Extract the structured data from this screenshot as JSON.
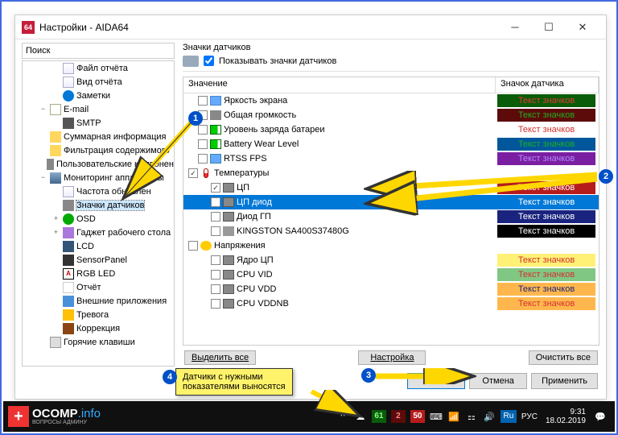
{
  "window": {
    "title": "Настройки - AIDA64",
    "app_badge": "64"
  },
  "search": {
    "label": "Поиск"
  },
  "tree": {
    "items": [
      {
        "label": "Файл отчёта",
        "icon": "ti-page",
        "lvl": "l2"
      },
      {
        "label": "Вид отчёта",
        "icon": "ti-page",
        "lvl": "l2"
      },
      {
        "label": "Заметки",
        "icon": "ti-info",
        "lvl": "l2"
      },
      {
        "label": "E-mail",
        "icon": "ti-mail",
        "lvl": "l1",
        "exp": "−"
      },
      {
        "label": "SMTP",
        "icon": "ti-server",
        "lvl": "l2"
      },
      {
        "label": "Суммарная информация",
        "icon": "ti-folder",
        "lvl": "l1"
      },
      {
        "label": "Фильтрация содержимого",
        "icon": "ti-folder",
        "lvl": "l1"
      },
      {
        "label": "Пользовательские компонен",
        "icon": "ti-sensor",
        "lvl": "l1"
      },
      {
        "label": "Мониторинг аппаратуры",
        "icon": "ti-monitor",
        "lvl": "l1",
        "exp": "−"
      },
      {
        "label": "Частота обновлен",
        "icon": "ti-page",
        "lvl": "l2"
      },
      {
        "label": "Значки датчиков",
        "icon": "ti-sensor",
        "lvl": "l2",
        "sel": true
      },
      {
        "label": "OSD",
        "icon": "ti-osd",
        "lvl": "l2",
        "exp": "+"
      },
      {
        "label": "Гаджет рабочего стола",
        "icon": "ti-gadget",
        "lvl": "l2",
        "exp": "+"
      },
      {
        "label": "LCD",
        "icon": "ti-lcd",
        "lvl": "l2"
      },
      {
        "label": "SensorPanel",
        "icon": "ti-panel",
        "lvl": "l2"
      },
      {
        "label": "RGB LED",
        "icon": "ti-rgb",
        "lvl": "l2",
        "txt": "A"
      },
      {
        "label": "Отчёт",
        "icon": "ti-report",
        "lvl": "l2"
      },
      {
        "label": "Внешние приложения",
        "icon": "ti-apps",
        "lvl": "l2"
      },
      {
        "label": "Тревога",
        "icon": "ti-warn",
        "lvl": "l2"
      },
      {
        "label": "Коррекция",
        "icon": "ti-corr",
        "lvl": "l2"
      },
      {
        "label": "Горячие клавиши",
        "icon": "ti-hotkey",
        "lvl": "l1"
      }
    ]
  },
  "section": {
    "title": "Значки датчиков",
    "show_label": "Показывать значки датчиков",
    "col_value": "Значение",
    "col_badge": "Значок датчика",
    "badge_text": "Текст значков"
  },
  "rows": [
    {
      "indent": "indent1",
      "chk": false,
      "icon": "ri-display",
      "label": "Яркость экрана",
      "bg": "#0a5c0a",
      "fg": "#e53935"
    },
    {
      "indent": "indent1",
      "chk": false,
      "icon": "ri-sound",
      "label": "Общая громкость",
      "bg": "#5c0a0a",
      "fg": "#1eb01e"
    },
    {
      "indent": "indent1",
      "chk": false,
      "icon": "ri-batt",
      "label": "Уровень заряда батареи",
      "bg": "#ffffff",
      "fg": "#d32f2f"
    },
    {
      "indent": "indent1",
      "chk": false,
      "icon": "ri-batt",
      "label": "Battery Wear Level",
      "bg": "#01579b",
      "fg": "#1eb01e"
    },
    {
      "indent": "indent1",
      "chk": false,
      "icon": "ri-rtss",
      "label": "RTSS FPS",
      "bg": "#7b1fa2",
      "fg": "#b388ff"
    },
    {
      "indent": "",
      "chk": true,
      "icon": "ri-temp",
      "label": "Температуры"
    },
    {
      "indent": "indent2",
      "chk": true,
      "icon": "ri-cpu",
      "label": "ЦП",
      "bg": "#b71c1c",
      "fg": "#ffffff"
    },
    {
      "indent": "indent2",
      "chk": false,
      "icon": "ri-cpu",
      "label": "ЦП диод",
      "bg": "#0078d7",
      "fg": "#ffffff",
      "sel": true
    },
    {
      "indent": "indent2",
      "chk": false,
      "icon": "ri-cpu",
      "label": "Диод ГП",
      "bg": "#1a237e",
      "fg": "#ffffff"
    },
    {
      "indent": "indent2",
      "chk": false,
      "icon": "ri-disk",
      "label": "KINGSTON SA400S37480G",
      "bg": "#000000",
      "fg": "#ffffff"
    },
    {
      "indent": "",
      "chk": false,
      "icon": "ri-volt",
      "label": "Напряжения"
    },
    {
      "indent": "indent2",
      "chk": false,
      "icon": "ri-cpu",
      "label": "Ядро ЦП",
      "bg": "#fff176",
      "fg": "#d32f2f"
    },
    {
      "indent": "indent2",
      "chk": false,
      "icon": "ri-cpu",
      "label": "CPU VID",
      "bg": "#81c784",
      "fg": "#d32f2f"
    },
    {
      "indent": "indent2",
      "chk": false,
      "icon": "ri-cpu",
      "label": "CPU VDD",
      "bg": "#ffb74d",
      "fg": "#1a237e"
    },
    {
      "indent": "indent2",
      "chk": false,
      "icon": "ri-cpu",
      "label": "CPU VDDNB",
      "bg": "#ffb74d",
      "fg": "#d32f2f"
    }
  ],
  "buttons": {
    "select_all": "Выделить все",
    "setup": "Настройка",
    "clear_all": "Очистить все",
    "ok": "OK",
    "cancel": "Отмена",
    "apply": "Применить"
  },
  "callout": {
    "line1": "Датчики с нужными",
    "line2": "показателями выносятся"
  },
  "taskbar": {
    "logo": "OCOMP",
    "logo_sfx": ".info",
    "logo_sub": "ВОПРОСЫ АДМИНУ",
    "temp1": "61",
    "temp2": "2",
    "temp3": "50",
    "lang_ru": "Ru",
    "lang_txt": "РУС",
    "time": "9:31",
    "date": "18.02.2019"
  },
  "notes": {
    "n1": "1",
    "n2": "2",
    "n3": "3",
    "n4": "4"
  }
}
